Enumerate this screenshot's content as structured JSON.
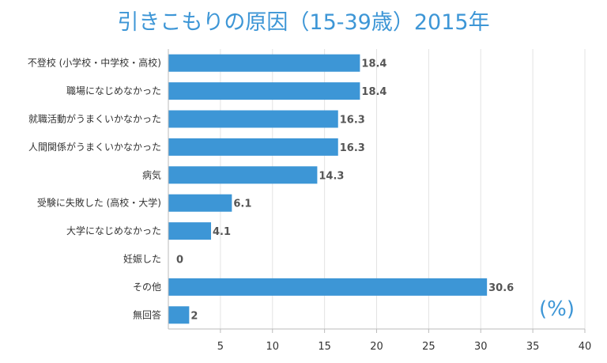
{
  "chart_data": {
    "type": "bar",
    "orientation": "horizontal",
    "title": "引きこもりの原因（15-39歳）2015年",
    "unit_label": "(%)",
    "categories": [
      "不登校 (小学校・中学校・高校)",
      "職場になじめなかった",
      "就職活動がうまくいかなかった",
      "人間関係がうまくいかなかった",
      "病気",
      "受験に失敗した (高校・大学)",
      "大学になじめなかった",
      "妊娠した",
      "その他",
      "無回答"
    ],
    "values": [
      18.4,
      18.4,
      16.3,
      16.3,
      14.3,
      6.1,
      4.1,
      0,
      30.6,
      2
    ],
    "value_labels": [
      "18.4",
      "18.4",
      "16.3",
      "16.3",
      "14.3",
      "6.1",
      "4.1",
      "0",
      "30.6",
      "2"
    ],
    "xlim": [
      0,
      40
    ],
    "xticks": [
      5,
      10,
      15,
      20,
      25,
      30,
      35,
      40
    ],
    "grid": true,
    "bar_color": "#3d96d6",
    "title_color": "#3d96d6"
  }
}
